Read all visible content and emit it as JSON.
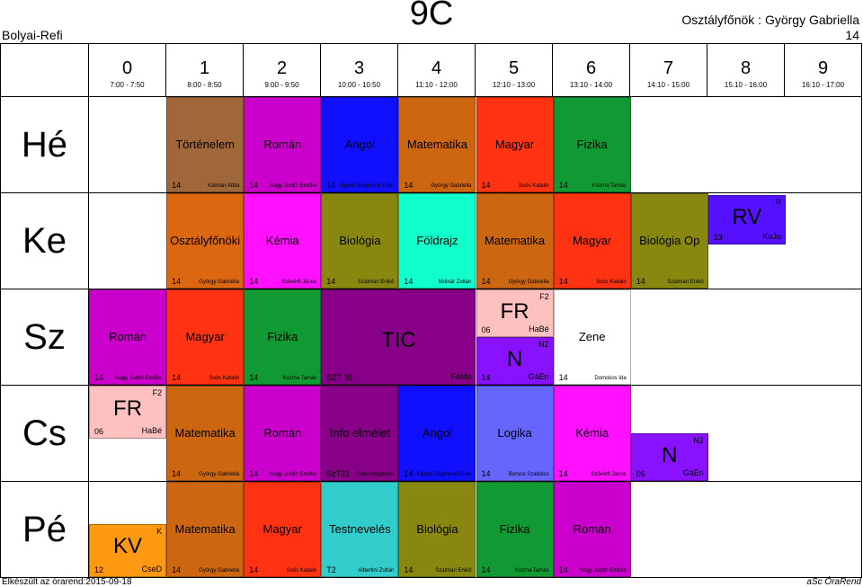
{
  "header": {
    "school": "Bolyai-Refi",
    "class_name": "9C",
    "homeroom_label": "Osztályfőnök : György Gabriella",
    "room": "14"
  },
  "periods": [
    {
      "num": "0",
      "time": "7:00 - 7:50"
    },
    {
      "num": "1",
      "time": "8:00 - 8:50"
    },
    {
      "num": "2",
      "time": "9:00 - 9:50"
    },
    {
      "num": "3",
      "time": "10:00 - 10:50"
    },
    {
      "num": "4",
      "time": "11:10 - 12:00"
    },
    {
      "num": "5",
      "time": "12:10 - 13:00"
    },
    {
      "num": "6",
      "time": "13:10 - 14:00"
    },
    {
      "num": "7",
      "time": "14:10 - 15:00"
    },
    {
      "num": "8",
      "time": "15:10 - 16:00"
    },
    {
      "num": "9",
      "time": "16:10 - 17:00"
    }
  ],
  "days": [
    "Hé",
    "Ke",
    "Sz",
    "Cs",
    "Pé"
  ],
  "lessons": [
    {
      "id": "he1",
      "subject": "Történelem",
      "cls": "14",
      "teacher": "Kálmán Attila",
      "color": "#A0673A"
    },
    {
      "id": "he2",
      "subject": "Román",
      "cls": "14",
      "teacher": "Nagy Judith Emőke",
      "color": "#CC00CC"
    },
    {
      "id": "he3",
      "subject": "Angol",
      "cls": "14",
      "teacher": "Egeső Zsigmond Ervin",
      "color": "#1010FF"
    },
    {
      "id": "he4",
      "subject": "Matematika",
      "cls": "14",
      "teacher": "György Gabriella",
      "color": "#CC6611"
    },
    {
      "id": "he5",
      "subject": "Magyar",
      "cls": "14",
      "teacher": "Soós Katalin",
      "color": "#FF3311"
    },
    {
      "id": "he6",
      "subject": "Fizika",
      "cls": "14",
      "teacher": "Kozma Tamás",
      "color": "#119933"
    },
    {
      "id": "ke1",
      "subject": "Osztályfőnöki",
      "cls": "14",
      "teacher": "György Gabriella",
      "color": "#DD6611"
    },
    {
      "id": "ke2",
      "subject": "Kémia",
      "cls": "14",
      "teacher": "Szövérfi János",
      "color": "#FF11FF"
    },
    {
      "id": "ke3",
      "subject": "Biológia",
      "cls": "14",
      "teacher": "Szatmári Enikő",
      "color": "#888811"
    },
    {
      "id": "ke4",
      "subject": "Földrajz",
      "cls": "14",
      "teacher": "Molnár Zoltán",
      "color": "#11FFCC"
    },
    {
      "id": "ke5",
      "subject": "Matematika",
      "cls": "14",
      "teacher": "György Gabriella",
      "color": "#CC6611"
    },
    {
      "id": "ke6",
      "subject": "Magyar",
      "cls": "14",
      "teacher": "Soós Katalin",
      "color": "#FF3311"
    },
    {
      "id": "ke7",
      "subject": "Biológia Op",
      "cls": "14",
      "teacher": "Szatmári Enikő",
      "color": "#888811"
    },
    {
      "id": "ke8",
      "subject": "RV",
      "cls": "13",
      "teacher": "KoJu",
      "room": "R",
      "color": "#5511FF"
    },
    {
      "id": "sz0",
      "subject": "Román",
      "cls": "14",
      "teacher": "Nagy Judith Emőke",
      "color": "#CC00CC"
    },
    {
      "id": "sz1",
      "subject": "Magyar",
      "cls": "14",
      "teacher": "Soós Katalin",
      "color": "#FF3311"
    },
    {
      "id": "sz2",
      "subject": "Fizika",
      "cls": "14",
      "teacher": "Kozma Tamás",
      "color": "#119933"
    },
    {
      "id": "sz3",
      "subject": "TIC",
      "cls": "SZT 35",
      "teacher": "FeMa",
      "color": "#880088"
    },
    {
      "id": "sz5a",
      "subject": "FR",
      "cls": "06",
      "teacher": "HaBé",
      "room": "F2",
      "color": "#FFC0C0"
    },
    {
      "id": "sz5b",
      "subject": "N",
      "cls": "14",
      "teacher": "GáEn",
      "room": "N2",
      "color": "#8811FF"
    },
    {
      "id": "sz6",
      "subject": "Zene",
      "cls": "14",
      "teacher": "Domokos Ida",
      "color": "#FFFFFF"
    },
    {
      "id": "cs0",
      "subject": "FR",
      "cls": "06",
      "teacher": "HaBé",
      "room": "F2",
      "color": "#FFC0C0"
    },
    {
      "id": "cs1",
      "subject": "Matematika",
      "cls": "14",
      "teacher": "György Gabriella",
      "color": "#CC6611"
    },
    {
      "id": "cs2",
      "subject": "Román",
      "cls": "14",
      "teacher": "Nagy Judith Emőke",
      "color": "#CC00CC"
    },
    {
      "id": "cs3",
      "subject": "Info elmélet",
      "cls": "SzT31",
      "teacher": "Fejér Magdolna",
      "color": "#880088"
    },
    {
      "id": "cs4",
      "subject": "Angol",
      "cls": "14",
      "teacher": "Egeső Zsigmond Ervin",
      "color": "#1010FF"
    },
    {
      "id": "cs5",
      "subject": "Logika",
      "cls": "14",
      "teacher": "Borsos Szabolcs",
      "color": "#6666FF"
    },
    {
      "id": "cs6",
      "subject": "Kémia",
      "cls": "14",
      "teacher": "Szövérfi János",
      "color": "#FF11FF"
    },
    {
      "id": "cs7",
      "subject": "N",
      "cls": "06",
      "teacher": "GáEn",
      "room": "N2",
      "color": "#8811FF"
    },
    {
      "id": "pe0",
      "subject": "KV",
      "cls": "12",
      "teacher": "CseD",
      "room": "K",
      "color": "#FF9911"
    },
    {
      "id": "pe1",
      "subject": "Matematika",
      "cls": "14",
      "teacher": "György Gabriella",
      "color": "#CC6611"
    },
    {
      "id": "pe2",
      "subject": "Magyar",
      "cls": "14",
      "teacher": "Soós Katalin",
      "color": "#FF3311"
    },
    {
      "id": "pe3",
      "subject": "Testnevelés",
      "cls": "T2",
      "teacher": "Albertini Zoltán",
      "color": "#33CCCC"
    },
    {
      "id": "pe4",
      "subject": "Biológia",
      "cls": "14",
      "teacher": "Szatmári Enikő",
      "color": "#888811"
    },
    {
      "id": "pe5",
      "subject": "Fizika",
      "cls": "14",
      "teacher": "Kozma Tamás",
      "color": "#119933"
    },
    {
      "id": "pe6",
      "subject": "Román",
      "cls": "14",
      "teacher": "Nagy Judith Emőke",
      "color": "#CC00CC"
    }
  ],
  "footer": {
    "created": "Elkészült az órarend:2015-09-18",
    "brand": "aSc ÓraRend"
  }
}
